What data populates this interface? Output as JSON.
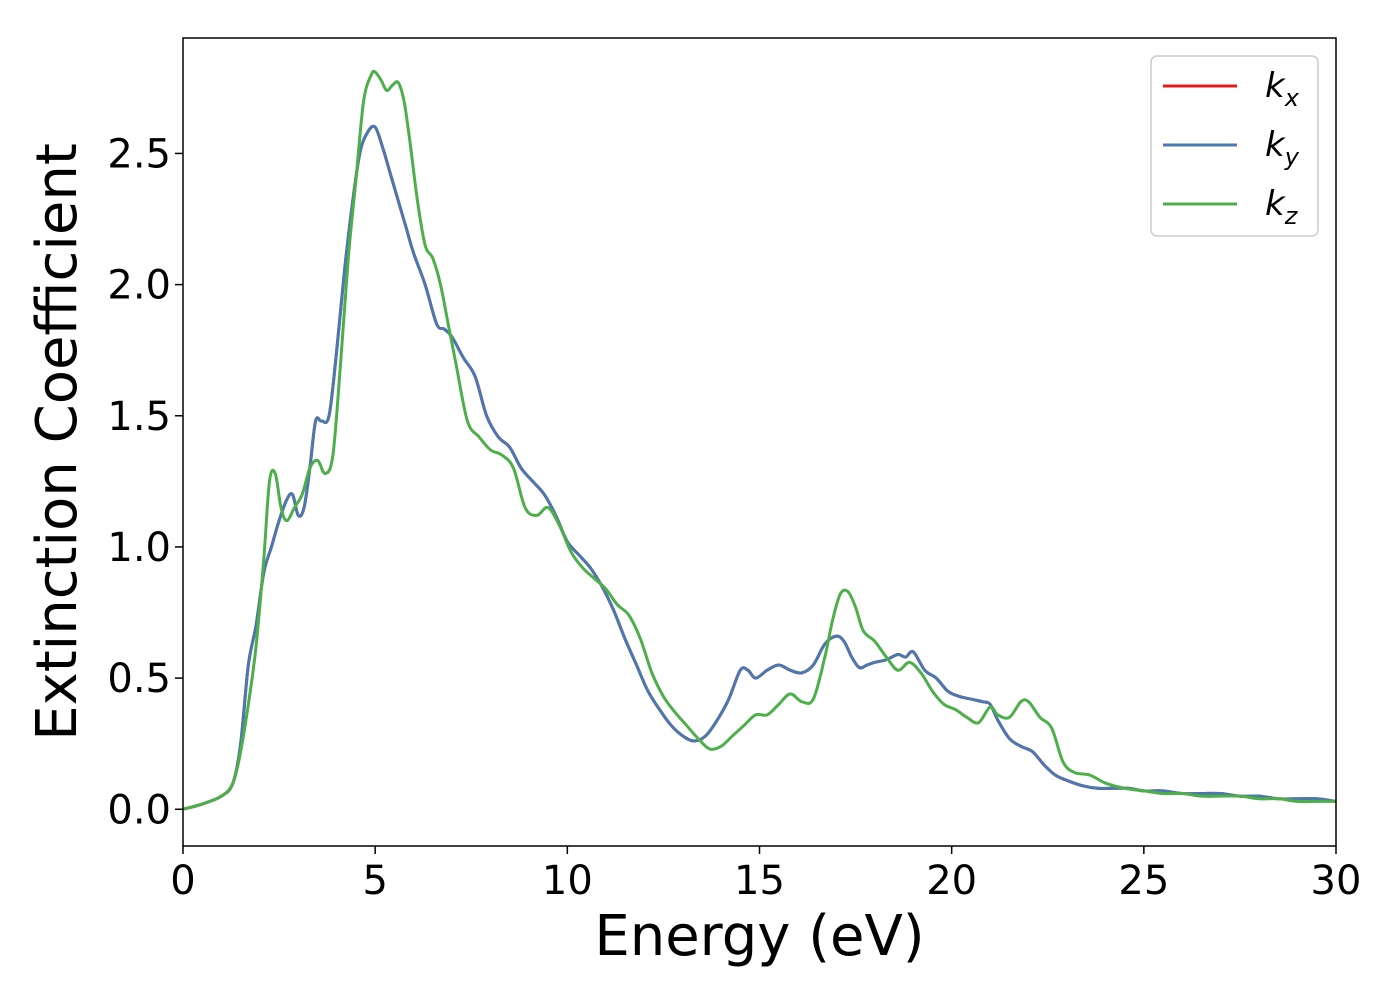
{
  "chart_data": {
    "type": "line",
    "title": "",
    "xlabel": "Energy (eV)",
    "ylabel": "Extinction Coefficient",
    "xlim": [
      0,
      30
    ],
    "ylim": [
      -0.14,
      2.94
    ],
    "xticks": [
      0,
      5,
      10,
      15,
      20,
      25,
      30
    ],
    "xtick_labels": [
      "0",
      "5",
      "10",
      "15",
      "20",
      "25",
      "30"
    ],
    "yticks": [
      0.0,
      0.5,
      1.0,
      1.5,
      2.0,
      2.5
    ],
    "ytick_labels": [
      "0.0",
      "0.5",
      "1.0",
      "1.5",
      "2.0",
      "2.5"
    ],
    "grid": false,
    "legend_position": "top-right",
    "series": [
      {
        "name": "k_x",
        "legend_base": "k",
        "legend_sub": "x",
        "color": "#e41a1c",
        "x": [
          0,
          0.5,
          1.0,
          1.3,
          1.5,
          1.7,
          1.9,
          2.1,
          2.3,
          2.5,
          2.7,
          2.85,
          3.0,
          3.15,
          3.3,
          3.45,
          3.6,
          3.8,
          4.0,
          4.2,
          4.4,
          4.6,
          4.8,
          5.0,
          5.2,
          5.4,
          5.6,
          5.8,
          6.0,
          6.3,
          6.6,
          6.8,
          7.0,
          7.3,
          7.6,
          7.9,
          8.2,
          8.5,
          8.8,
          9.1,
          9.4,
          9.7,
          10.0,
          10.3,
          10.6,
          10.9,
          11.2,
          11.5,
          11.8,
          12.1,
          12.4,
          12.7,
          13.0,
          13.3,
          13.6,
          13.9,
          14.2,
          14.5,
          14.7,
          14.9,
          15.2,
          15.5,
          15.8,
          16.1,
          16.4,
          16.7,
          17.0,
          17.2,
          17.4,
          17.6,
          17.8,
          18.0,
          18.3,
          18.6,
          18.8,
          19.0,
          19.3,
          19.6,
          19.9,
          20.2,
          20.5,
          20.8,
          21.0,
          21.2,
          21.5,
          21.8,
          22.1,
          22.4,
          22.7,
          23.0,
          23.4,
          23.8,
          24.2,
          24.6,
          25.0,
          25.5,
          26.0,
          26.5,
          27.0,
          27.5,
          28.0,
          28.5,
          29.0,
          29.5,
          30.0
        ],
        "values": [
          0.0,
          0.02,
          0.05,
          0.1,
          0.25,
          0.55,
          0.7,
          0.9,
          1.0,
          1.1,
          1.18,
          1.2,
          1.12,
          1.15,
          1.3,
          1.48,
          1.48,
          1.5,
          1.75,
          2.05,
          2.3,
          2.5,
          2.58,
          2.6,
          2.52,
          2.42,
          2.32,
          2.22,
          2.12,
          2.0,
          1.85,
          1.83,
          1.8,
          1.72,
          1.65,
          1.5,
          1.42,
          1.38,
          1.3,
          1.25,
          1.2,
          1.12,
          1.02,
          0.97,
          0.92,
          0.85,
          0.76,
          0.65,
          0.55,
          0.45,
          0.38,
          0.32,
          0.28,
          0.26,
          0.28,
          0.34,
          0.42,
          0.53,
          0.53,
          0.5,
          0.53,
          0.55,
          0.53,
          0.52,
          0.55,
          0.63,
          0.66,
          0.64,
          0.58,
          0.54,
          0.55,
          0.56,
          0.57,
          0.59,
          0.58,
          0.6,
          0.53,
          0.5,
          0.45,
          0.43,
          0.42,
          0.41,
          0.4,
          0.34,
          0.27,
          0.24,
          0.22,
          0.17,
          0.13,
          0.11,
          0.09,
          0.08,
          0.08,
          0.08,
          0.07,
          0.07,
          0.06,
          0.06,
          0.06,
          0.05,
          0.05,
          0.04,
          0.04,
          0.04,
          0.03
        ]
      },
      {
        "name": "k_y",
        "legend_base": "k",
        "legend_sub": "y",
        "color": "#4a78b0",
        "x": [
          0,
          0.5,
          1.0,
          1.3,
          1.5,
          1.7,
          1.9,
          2.1,
          2.3,
          2.5,
          2.7,
          2.85,
          3.0,
          3.15,
          3.3,
          3.45,
          3.6,
          3.8,
          4.0,
          4.2,
          4.4,
          4.6,
          4.8,
          5.0,
          5.2,
          5.4,
          5.6,
          5.8,
          6.0,
          6.3,
          6.6,
          6.8,
          7.0,
          7.3,
          7.6,
          7.9,
          8.2,
          8.5,
          8.8,
          9.1,
          9.4,
          9.7,
          10.0,
          10.3,
          10.6,
          10.9,
          11.2,
          11.5,
          11.8,
          12.1,
          12.4,
          12.7,
          13.0,
          13.3,
          13.6,
          13.9,
          14.2,
          14.5,
          14.7,
          14.9,
          15.2,
          15.5,
          15.8,
          16.1,
          16.4,
          16.7,
          17.0,
          17.2,
          17.4,
          17.6,
          17.8,
          18.0,
          18.3,
          18.6,
          18.8,
          19.0,
          19.3,
          19.6,
          19.9,
          20.2,
          20.5,
          20.8,
          21.0,
          21.2,
          21.5,
          21.8,
          22.1,
          22.4,
          22.7,
          23.0,
          23.4,
          23.8,
          24.2,
          24.6,
          25.0,
          25.5,
          26.0,
          26.5,
          27.0,
          27.5,
          28.0,
          28.5,
          29.0,
          29.5,
          30.0
        ],
        "values": [
          0.0,
          0.02,
          0.05,
          0.1,
          0.25,
          0.55,
          0.7,
          0.9,
          1.0,
          1.1,
          1.18,
          1.2,
          1.12,
          1.15,
          1.3,
          1.48,
          1.48,
          1.5,
          1.75,
          2.05,
          2.3,
          2.5,
          2.58,
          2.6,
          2.52,
          2.42,
          2.32,
          2.22,
          2.12,
          2.0,
          1.85,
          1.83,
          1.8,
          1.72,
          1.65,
          1.5,
          1.42,
          1.38,
          1.3,
          1.25,
          1.2,
          1.12,
          1.02,
          0.97,
          0.92,
          0.85,
          0.76,
          0.65,
          0.55,
          0.45,
          0.38,
          0.32,
          0.28,
          0.26,
          0.28,
          0.34,
          0.42,
          0.53,
          0.53,
          0.5,
          0.53,
          0.55,
          0.53,
          0.52,
          0.55,
          0.63,
          0.66,
          0.64,
          0.58,
          0.54,
          0.55,
          0.56,
          0.57,
          0.59,
          0.58,
          0.6,
          0.53,
          0.5,
          0.45,
          0.43,
          0.42,
          0.41,
          0.4,
          0.34,
          0.27,
          0.24,
          0.22,
          0.17,
          0.13,
          0.11,
          0.09,
          0.08,
          0.08,
          0.08,
          0.07,
          0.07,
          0.06,
          0.06,
          0.06,
          0.05,
          0.05,
          0.04,
          0.04,
          0.04,
          0.03
        ]
      },
      {
        "name": "k_z",
        "legend_base": "k",
        "legend_sub": "z",
        "color": "#4daf4a",
        "x": [
          0,
          0.5,
          1.0,
          1.3,
          1.5,
          1.7,
          1.9,
          2.1,
          2.25,
          2.4,
          2.55,
          2.7,
          2.9,
          3.1,
          3.3,
          3.5,
          3.7,
          3.9,
          4.1,
          4.3,
          4.5,
          4.7,
          4.9,
          5.0,
          5.15,
          5.3,
          5.45,
          5.6,
          5.75,
          5.9,
          6.1,
          6.3,
          6.5,
          6.7,
          6.9,
          7.1,
          7.4,
          7.7,
          8.0,
          8.3,
          8.6,
          8.9,
          9.2,
          9.5,
          9.8,
          10.1,
          10.4,
          10.7,
          11.0,
          11.3,
          11.6,
          11.9,
          12.2,
          12.5,
          12.8,
          13.1,
          13.4,
          13.7,
          14.0,
          14.3,
          14.6,
          14.9,
          15.2,
          15.5,
          15.8,
          16.1,
          16.4,
          16.7,
          16.9,
          17.1,
          17.3,
          17.5,
          17.7,
          18.0,
          18.3,
          18.6,
          18.9,
          19.2,
          19.5,
          19.8,
          20.1,
          20.4,
          20.7,
          21.0,
          21.2,
          21.5,
          21.8,
          22.0,
          22.3,
          22.6,
          22.9,
          23.2,
          23.6,
          24.0,
          24.5,
          25.0,
          25.5,
          26.0,
          26.5,
          27.0,
          27.5,
          28.0,
          28.5,
          29.0,
          29.5,
          30.0
        ],
        "values": [
          0.0,
          0.02,
          0.05,
          0.1,
          0.22,
          0.4,
          0.62,
          0.95,
          1.25,
          1.28,
          1.15,
          1.1,
          1.15,
          1.2,
          1.3,
          1.33,
          1.28,
          1.35,
          1.7,
          2.1,
          2.4,
          2.7,
          2.8,
          2.81,
          2.78,
          2.74,
          2.76,
          2.77,
          2.7,
          2.55,
          2.32,
          2.15,
          2.1,
          2.0,
          1.85,
          1.7,
          1.48,
          1.42,
          1.37,
          1.35,
          1.3,
          1.15,
          1.12,
          1.15,
          1.08,
          0.98,
          0.92,
          0.88,
          0.84,
          0.78,
          0.74,
          0.65,
          0.52,
          0.43,
          0.37,
          0.32,
          0.27,
          0.23,
          0.24,
          0.28,
          0.32,
          0.36,
          0.36,
          0.4,
          0.44,
          0.41,
          0.42,
          0.58,
          0.72,
          0.82,
          0.83,
          0.77,
          0.68,
          0.64,
          0.58,
          0.53,
          0.56,
          0.52,
          0.45,
          0.4,
          0.38,
          0.35,
          0.33,
          0.39,
          0.36,
          0.35,
          0.41,
          0.41,
          0.35,
          0.31,
          0.18,
          0.14,
          0.13,
          0.1,
          0.08,
          0.07,
          0.06,
          0.06,
          0.05,
          0.05,
          0.05,
          0.04,
          0.04,
          0.03,
          0.03,
          0.03
        ]
      }
    ]
  }
}
